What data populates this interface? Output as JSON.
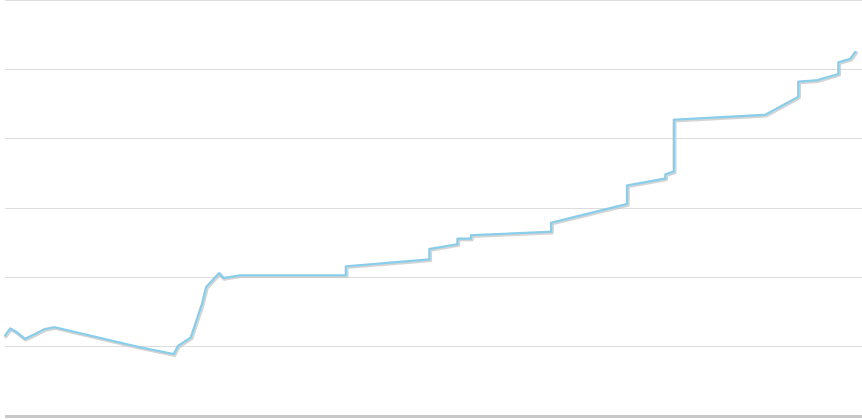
{
  "chart_data": {
    "type": "line",
    "title": "",
    "xlabel": "",
    "ylabel": "",
    "xlim": [
      0,
      100
    ],
    "ylim": [
      0,
      6
    ],
    "grid": true,
    "gridline_values": [
      1,
      2,
      3,
      4,
      5,
      6
    ],
    "series": [
      {
        "color": "#87ceeb",
        "points": [
          [
            0,
            1.15
          ],
          [
            0.6,
            1.25
          ],
          [
            1.3,
            1.2
          ],
          [
            2.3,
            1.1
          ],
          [
            3.5,
            1.17
          ],
          [
            4.6,
            1.24
          ],
          [
            5.8,
            1.27
          ],
          [
            15.8,
            0.98
          ],
          [
            19.8,
            0.88
          ],
          [
            20.3,
            1.0
          ],
          [
            21.8,
            1.12
          ],
          [
            23.1,
            1.6
          ],
          [
            23.6,
            1.85
          ],
          [
            25.1,
            2.05
          ],
          [
            25.6,
            1.98
          ],
          [
            27.6,
            2.02
          ],
          [
            40,
            2.02
          ],
          [
            40,
            2.15
          ],
          [
            49.8,
            2.25
          ],
          [
            49.8,
            2.4
          ],
          [
            53.1,
            2.47
          ],
          [
            53.1,
            2.55
          ],
          [
            54.7,
            2.55
          ],
          [
            54.7,
            2.6
          ],
          [
            64.1,
            2.65
          ],
          [
            64.1,
            2.78
          ],
          [
            73,
            3.05
          ],
          [
            73,
            3.32
          ],
          [
            77.5,
            3.42
          ],
          [
            77.5,
            3.48
          ],
          [
            78.5,
            3.52
          ],
          [
            78.5,
            4.27
          ],
          [
            89.2,
            4.34
          ],
          [
            93.1,
            4.6
          ],
          [
            93.1,
            4.82
          ],
          [
            95.3,
            4.84
          ],
          [
            97.8,
            4.93
          ],
          [
            97.8,
            5.1
          ],
          [
            99.2,
            5.15
          ],
          [
            99.8,
            5.25
          ]
        ]
      }
    ]
  },
  "style": {
    "line_color": "#87ceeb",
    "line_shadow_color": "#c9c9c9",
    "grid_color": "#dddddd",
    "baseline_color": "#c8c8c8"
  }
}
